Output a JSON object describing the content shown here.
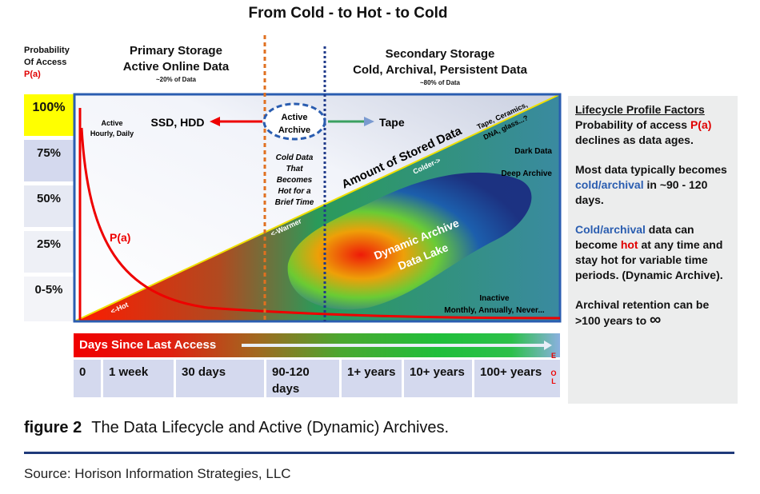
{
  "title": "From Cold - to Hot - to Cold",
  "probability": {
    "header_line1": "Probability",
    "header_line2": "Of Access",
    "header_line3": "P(a)",
    "levels": [
      "100%",
      "75%",
      "50%",
      "25%",
      "0-5%"
    ]
  },
  "primary": {
    "line1": "Primary Storage",
    "line2": "Active Online Data",
    "share": "~20% of Data"
  },
  "secondary": {
    "line1": "Secondary Storage",
    "line2": "Cold, Archival, Persistent Data",
    "share": "~80% of Data"
  },
  "diagram": {
    "active_line1": "Active",
    "active_line2": "Hourly, Daily",
    "ssd_hdd": "SSD, HDD",
    "active_archive_line1": "Active",
    "active_archive_line2": "Archive",
    "tape": "Tape",
    "cold_data": [
      "Cold Data",
      "That",
      "Becomes",
      "Hot for a",
      "Brief Time"
    ],
    "amount": "Amount of Stored Data",
    "media_line1": "Tape, Ceramics,",
    "media_line2": "DNA, glass...?",
    "colder": "Colder->",
    "warmer": "<-Warmer",
    "hot": "<-Hot",
    "dark_data": "Dark Data",
    "deep_archive": "Deep Archive",
    "lake_line1": "Dynamic Archive",
    "lake_line2": "Data Lake",
    "pa": "P(a)",
    "inactive_line1": "Inactive",
    "inactive_line2": "Monthly, Annually, Never..."
  },
  "timeline": {
    "label": "Days Since Last Access",
    "cells": [
      "0",
      "1 week",
      "30 days",
      "90-120 days",
      "1+ years",
      "10+ years",
      "100+ years"
    ],
    "eol": [
      "E",
      "O",
      "L"
    ]
  },
  "sidebar": {
    "heading": "Lifecycle Profile Factors",
    "p1_a": "Probability of access ",
    "p1_b": "P(a)",
    "p1_c": " declines as data ages.",
    "p2_a": "Most data typically becomes ",
    "p2_b": "cold/archival",
    "p2_c": " in ~90 - 120 days.",
    "p3_a": "Cold/archival",
    "p3_b": " data can become ",
    "p3_c": "hot",
    "p3_d": " at any time and stay hot for variable time periods. (Dynamic Archive).",
    "p4_a": "Archival retention can be >100 years to ",
    "p4_b": "∞"
  },
  "caption": {
    "label": "figure 2",
    "text": "The Data Lifecycle and Active (Dynamic) Archives."
  },
  "source": "Source: Horison Information Strategies, LLC",
  "colors": {
    "hot": "#e00000",
    "accent_blue": "#2a5db0",
    "highlight": "#ffff00",
    "orange": "#e07020"
  }
}
